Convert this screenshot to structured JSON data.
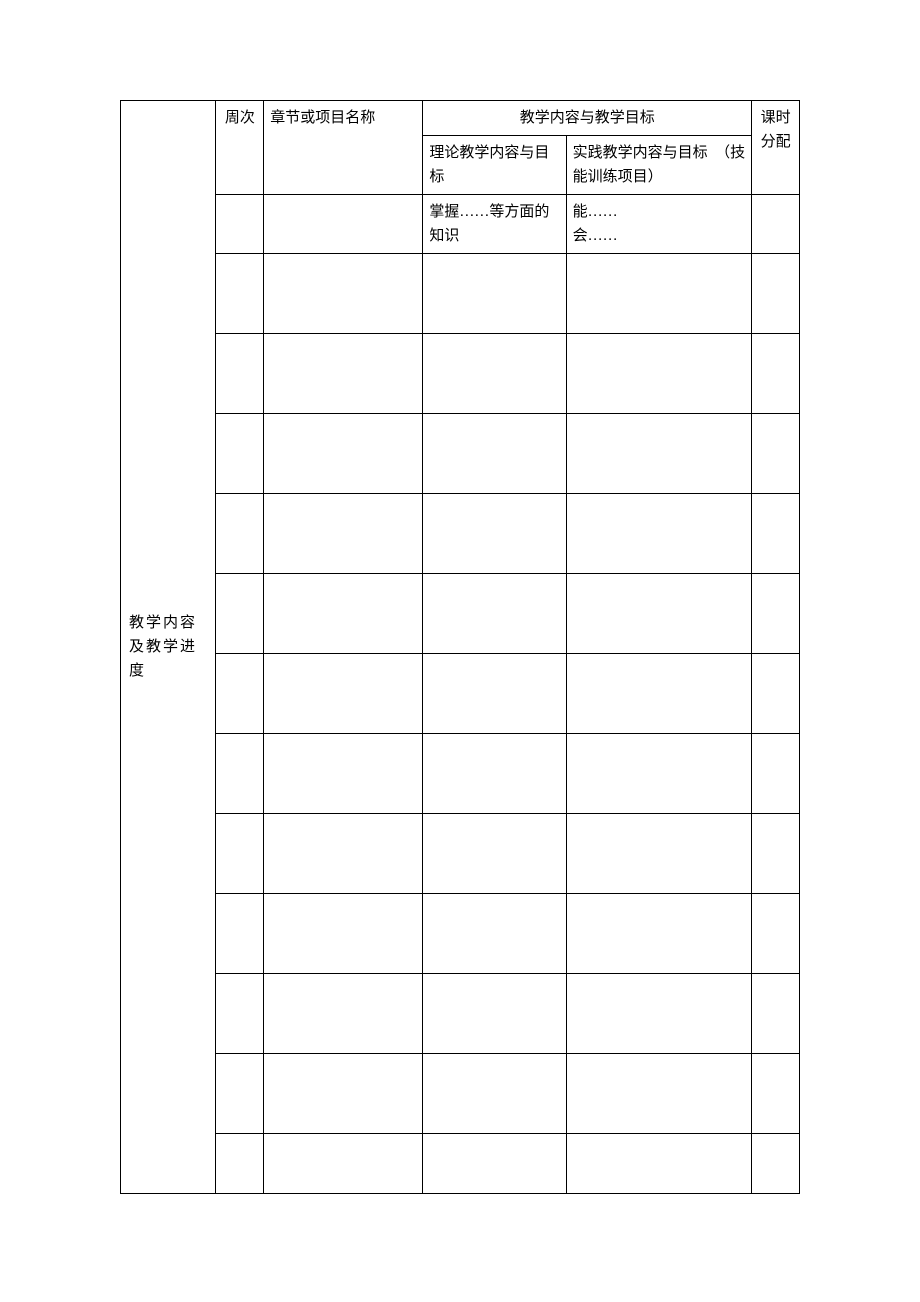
{
  "table": {
    "rowLabel": "教学内容及教学进度",
    "headers": {
      "week": "周次",
      "chapter": "章节或项目名称",
      "contentGoal": "教学内容与教学目标",
      "theory": "理论教学内容与目标",
      "practice": "实践教学内容与目标　（技能训练项目）",
      "hours": "课时分配"
    },
    "firstRow": {
      "theory": "掌握……等方面的知识",
      "practice": "能……\n会……"
    },
    "colors": {
      "border": "#000000",
      "background": "#ffffff",
      "text": "#000000"
    },
    "layout": {
      "fontSize": 15,
      "fontFamily": "SimSun",
      "emptyRowCount": 11
    }
  }
}
